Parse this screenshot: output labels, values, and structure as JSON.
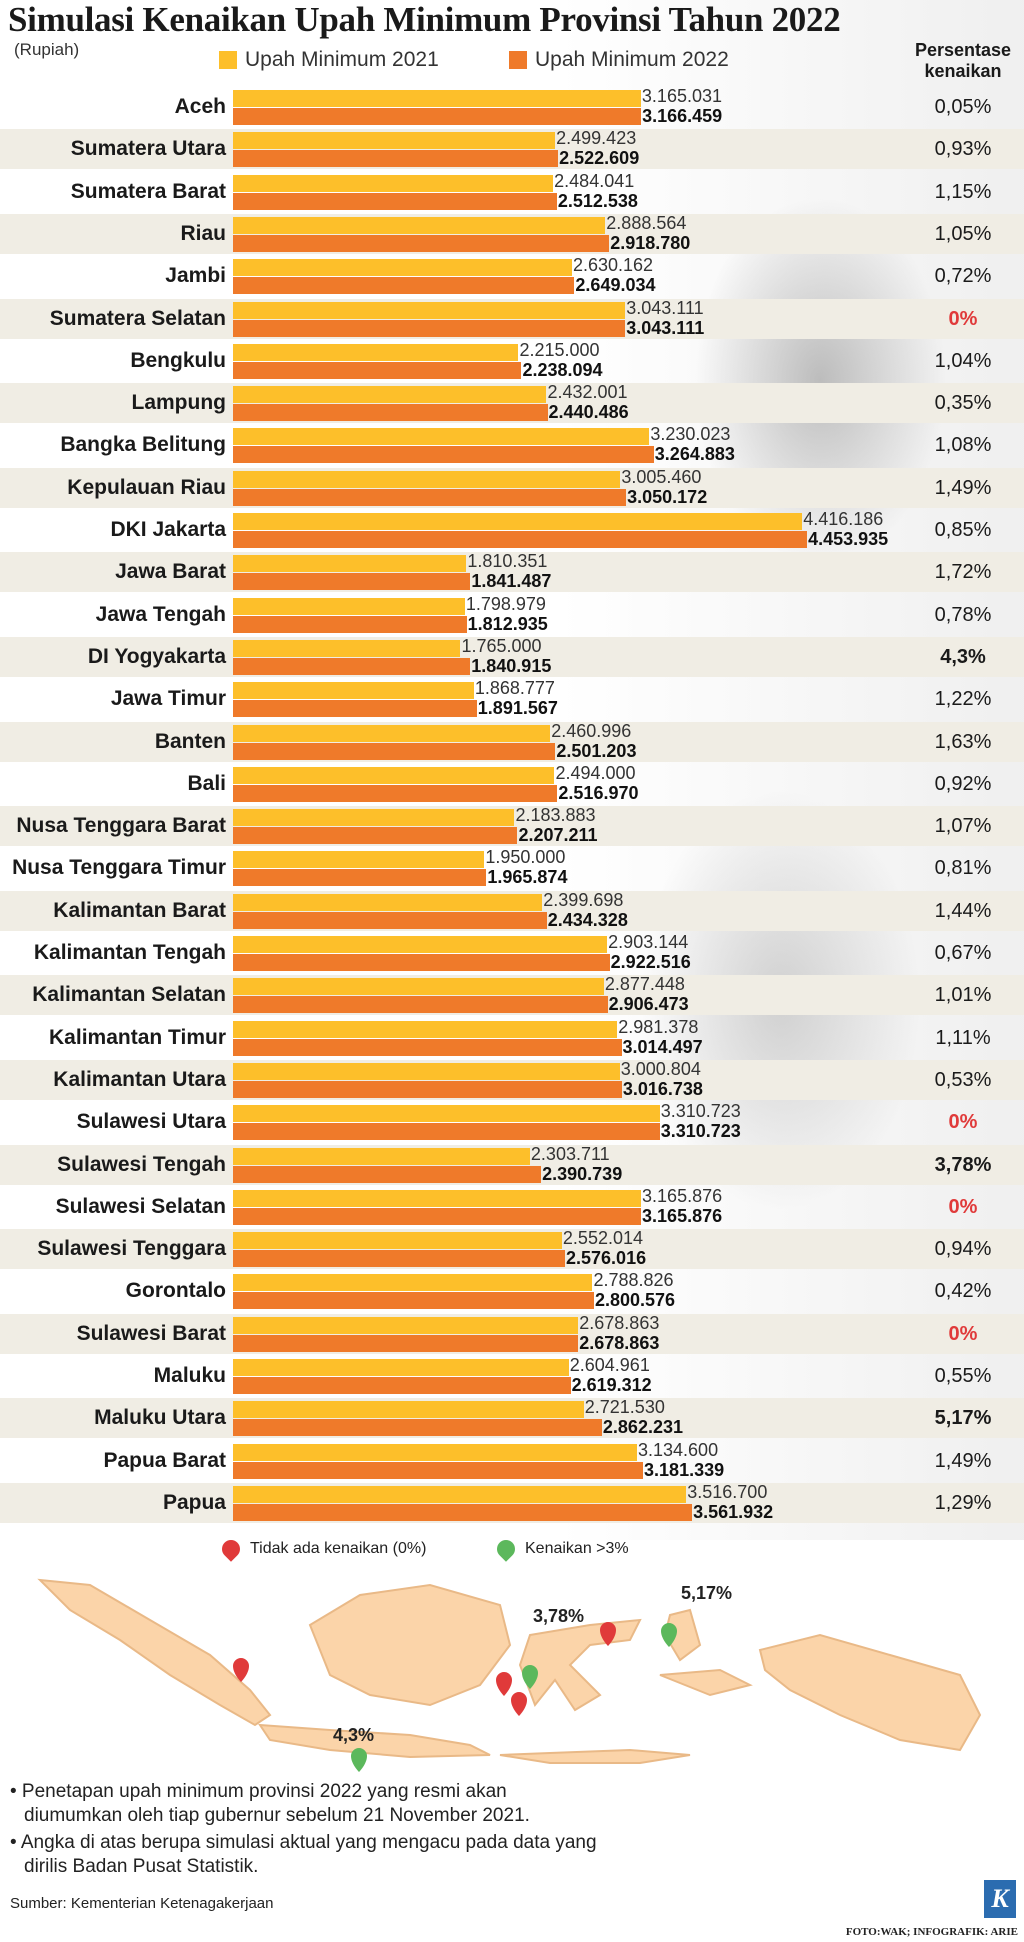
{
  "title": "Simulasi Kenaikan Upah Minimum Provinsi Tahun 2022",
  "unit": "(Rupiah)",
  "pct_header": "Persentase kenaikan",
  "colors": {
    "umr2021": "#fdbf2a",
    "umr2022": "#ef7a2a",
    "stripe": "#f0ede4",
    "red_pin": "#e03a3a",
    "green_pin": "#5cb85c",
    "map_fill": "#fbd4a9"
  },
  "map": {
    "legend_none": "Tidak ada kenaikan (0%)",
    "legend_over3": "Kenaikan >3%",
    "labels": [
      "4,3%",
      "3,78%",
      "5,17%"
    ]
  },
  "notes": [
    "• Penetapan upah minimum provinsi 2022 yang resmi akan diumumkan oleh tiap gubernur sebelum 21 November 2021.",
    "• Angka di atas berupa simulasi aktual yang mengacu pada data yang dirilis Badan Pusat Statistik."
  ],
  "source": "Sumber: Kementerian Ketenagakerjaan",
  "credit": "FOTO:WAK; INFOGRAFIK: ARIE",
  "logo": "K",
  "chart_data": {
    "type": "bar",
    "orientation": "horizontal",
    "xlim": [
      0,
      4500000
    ],
    "series": [
      {
        "name": "Upah Minimum 2021",
        "values": [
          3165031,
          2499423,
          2484041,
          2888564,
          2630162,
          3043111,
          2215000,
          2432001,
          3230023,
          3005460,
          4416186,
          1810351,
          1798979,
          1765000,
          1868777,
          2460996,
          2494000,
          2183883,
          1950000,
          2399698,
          2903144,
          2877448,
          2981378,
          3000804,
          3310723,
          2303711,
          3165876,
          2552014,
          2788826,
          2678863,
          2604961,
          2721530,
          3134600,
          3516700
        ]
      },
      {
        "name": "Upah Minimum 2022",
        "values": [
          3166459,
          2522609,
          2512538,
          2918780,
          2649034,
          3043111,
          2238094,
          2440486,
          3264883,
          3050172,
          4453935,
          1841487,
          1812935,
          1840915,
          1891567,
          2501203,
          2516970,
          2207211,
          1965874,
          2434328,
          2922516,
          2906473,
          3014497,
          3016738,
          3310723,
          2390739,
          3165876,
          2576016,
          2800576,
          2678863,
          2619312,
          2862231,
          3181339,
          3561932
        ]
      }
    ],
    "rows": [
      {
        "province": "Aceh",
        "v21": "3.165.031",
        "v22": "3.166.459",
        "pct": "0,05%"
      },
      {
        "province": "Sumatera Utara",
        "v21": "2.499.423",
        "v22": "2.522.609",
        "pct": "0,93%"
      },
      {
        "province": "Sumatera Barat",
        "v21": "2.484.041",
        "v22": "2.512.538",
        "pct": "1,15%"
      },
      {
        "province": "Riau",
        "v21": "2.888.564",
        "v22": "2.918.780",
        "pct": "1,05%"
      },
      {
        "province": "Jambi",
        "v21": "2.630.162",
        "v22": "2.649.034",
        "pct": "0,72%"
      },
      {
        "province": "Sumatera Selatan",
        "v21": "3.043.111",
        "v22": "3.043.111",
        "pct": "0%"
      },
      {
        "province": "Bengkulu",
        "v21": "2.215.000",
        "v22": "2.238.094",
        "pct": "1,04%"
      },
      {
        "province": "Lampung",
        "v21": "2.432.001",
        "v22": "2.440.486",
        "pct": "0,35%"
      },
      {
        "province": "Bangka Belitung",
        "v21": "3.230.023",
        "v22": "3.264.883",
        "pct": "1,08%"
      },
      {
        "province": "Kepulauan Riau",
        "v21": "3.005.460",
        "v22": "3.050.172",
        "pct": "1,49%"
      },
      {
        "province": "DKI Jakarta",
        "v21": "4.416.186",
        "v22": "4.453.935",
        "pct": "0,85%"
      },
      {
        "province": "Jawa Barat",
        "v21": "1.810.351",
        "v22": "1.841.487",
        "pct": "1,72%"
      },
      {
        "province": "Jawa Tengah",
        "v21": "1.798.979",
        "v22": "1.812.935",
        "pct": "0,78%"
      },
      {
        "province": "DI Yogyakarta",
        "v21": "1.765.000",
        "v22": "1.840.915",
        "pct": "4,3%"
      },
      {
        "province": "Jawa Timur",
        "v21": "1.868.777",
        "v22": "1.891.567",
        "pct": "1,22%"
      },
      {
        "province": "Banten",
        "v21": "2.460.996",
        "v22": "2.501.203",
        "pct": "1,63%"
      },
      {
        "province": "Bali",
        "v21": "2.494.000",
        "v22": "2.516.970",
        "pct": "0,92%"
      },
      {
        "province": "Nusa Tenggara Barat",
        "v21": "2.183.883",
        "v22": "2.207.211",
        "pct": "1,07%"
      },
      {
        "province": "Nusa Tenggara Timur",
        "v21": "1.950.000",
        "v22": "1.965.874",
        "pct": "0,81%"
      },
      {
        "province": "Kalimantan Barat",
        "v21": "2.399.698",
        "v22": "2.434.328",
        "pct": "1,44%"
      },
      {
        "province": "Kalimantan Tengah",
        "v21": "2.903.144",
        "v22": "2.922.516",
        "pct": "0,67%"
      },
      {
        "province": "Kalimantan Selatan",
        "v21": "2.877.448",
        "v22": "2.906.473",
        "pct": "1,01%"
      },
      {
        "province": "Kalimantan Timur",
        "v21": "2.981.378",
        "v22": "3.014.497",
        "pct": "1,11%"
      },
      {
        "province": "Kalimantan Utara",
        "v21": "3.000.804",
        "v22": "3.016.738",
        "pct": "0,53%"
      },
      {
        "province": "Sulawesi Utara",
        "v21": "3.310.723",
        "v22": "3.310.723",
        "pct": "0%"
      },
      {
        "province": "Sulawesi Tengah",
        "v21": "2.303.711",
        "v22": "2.390.739",
        "pct": "3,78%"
      },
      {
        "province": "Sulawesi Selatan",
        "v21": "3.165.876",
        "v22": "3.165.876",
        "pct": "0%"
      },
      {
        "province": "Sulawesi Tenggara",
        "v21": "2.552.014",
        "v22": "2.576.016",
        "pct": "0,94%"
      },
      {
        "province": "Gorontalo",
        "v21": "2.788.826",
        "v22": "2.800.576",
        "pct": "0,42%"
      },
      {
        "province": "Sulawesi Barat",
        "v21": "2.678.863",
        "v22": "2.678.863",
        "pct": "0%"
      },
      {
        "province": "Maluku",
        "v21": "2.604.961",
        "v22": "2.619.312",
        "pct": "0,55%"
      },
      {
        "province": "Maluku Utara",
        "v21": "2.721.530",
        "v22": "2.862.231",
        "pct": "5,17%"
      },
      {
        "province": "Papua Barat",
        "v21": "3.134.600",
        "v22": "3.181.339",
        "pct": "1,49%"
      },
      {
        "province": "Papua",
        "v21": "3.516.700",
        "v22": "3.561.932",
        "pct": "1,29%"
      }
    ]
  }
}
